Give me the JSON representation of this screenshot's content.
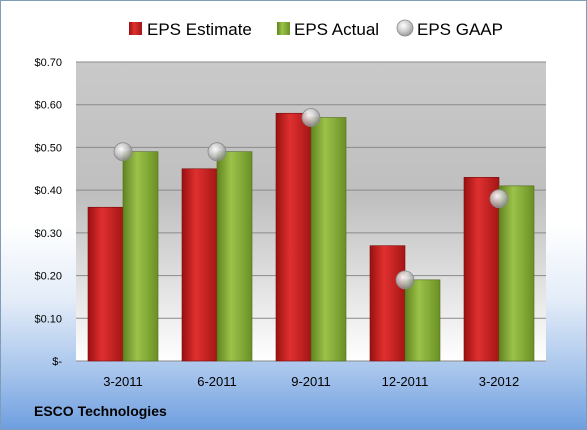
{
  "footer": {
    "company": "ESCO Technologies"
  },
  "chart_data": {
    "type": "bar",
    "categories": [
      "3-2011",
      "6-2011",
      "9-2011",
      "12-2011",
      "3-2012"
    ],
    "series": [
      {
        "name": "EPS Estimate",
        "kind": "bar",
        "color": "#cc1f1f",
        "values": [
          0.36,
          0.45,
          0.58,
          0.27,
          0.43
        ]
      },
      {
        "name": "EPS Actual",
        "kind": "bar",
        "color": "#8cb33a",
        "values": [
          0.49,
          0.49,
          0.57,
          0.19,
          0.41
        ]
      },
      {
        "name": "EPS GAAP",
        "kind": "marker",
        "color": "#b8b8b8",
        "values": [
          0.49,
          0.49,
          0.57,
          0.19,
          0.38
        ]
      }
    ],
    "ylim": [
      0,
      0.7
    ],
    "yticks": [
      0,
      0.1,
      0.2,
      0.3,
      0.4,
      0.5,
      0.6,
      0.7
    ],
    "ytick_labels": [
      "$-",
      "$0.10",
      "$0.20",
      "$0.30",
      "$0.40",
      "$0.50",
      "$0.60",
      "$0.70"
    ],
    "grid": true,
    "legend": "top"
  }
}
